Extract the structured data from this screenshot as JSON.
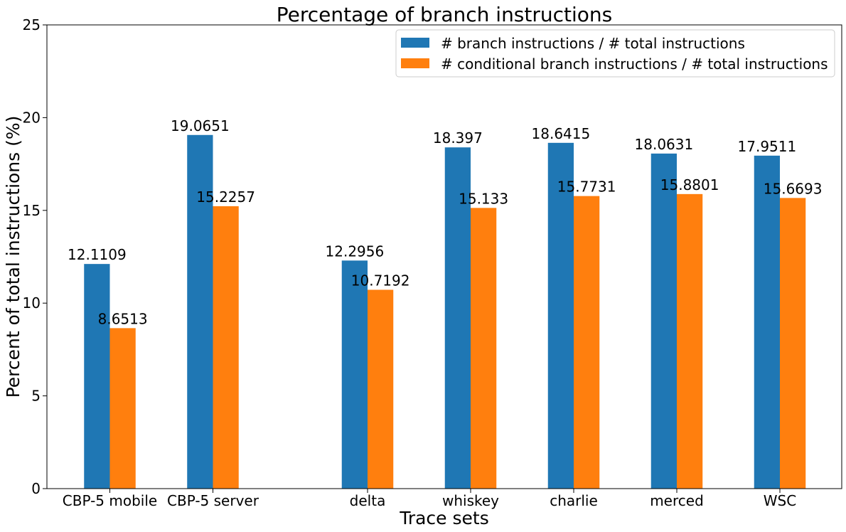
{
  "chart_data": {
    "type": "bar",
    "title": "Percentage of branch instructions",
    "xlabel": "Trace sets",
    "ylabel": "Percent of total instructions (%)",
    "ylim": [
      0,
      25
    ],
    "yticks": [
      0,
      5,
      10,
      15,
      20,
      25
    ],
    "grid": false,
    "legend_position": "top-right",
    "categories": [
      "CBP-5 mobile",
      "CBP-5 server",
      "delta",
      "whiskey",
      "charlie",
      "merced",
      "WSC"
    ],
    "category_positions": [
      0,
      1,
      2.5,
      3.5,
      4.5,
      5.5,
      6.5
    ],
    "series": [
      {
        "name": "# branch instructions / # total instructions",
        "color": "#1f77b4",
        "values": [
          12.1109,
          19.0651,
          12.2956,
          18.397,
          18.6415,
          18.0631,
          17.9511
        ],
        "labels": [
          "12.1109",
          "19.0651",
          "12.2956",
          "18.397",
          "18.6415",
          "18.0631",
          "17.9511"
        ]
      },
      {
        "name": "# conditional branch instructions / # total instructions",
        "color": "#ff7f0e",
        "values": [
          8.6513,
          15.2257,
          10.7192,
          15.133,
          15.7731,
          15.8801,
          15.6693
        ],
        "labels": [
          "8.6513",
          "15.2257",
          "10.7192",
          "15.133",
          "15.7731",
          "15.8801",
          "15.6693"
        ]
      }
    ]
  }
}
